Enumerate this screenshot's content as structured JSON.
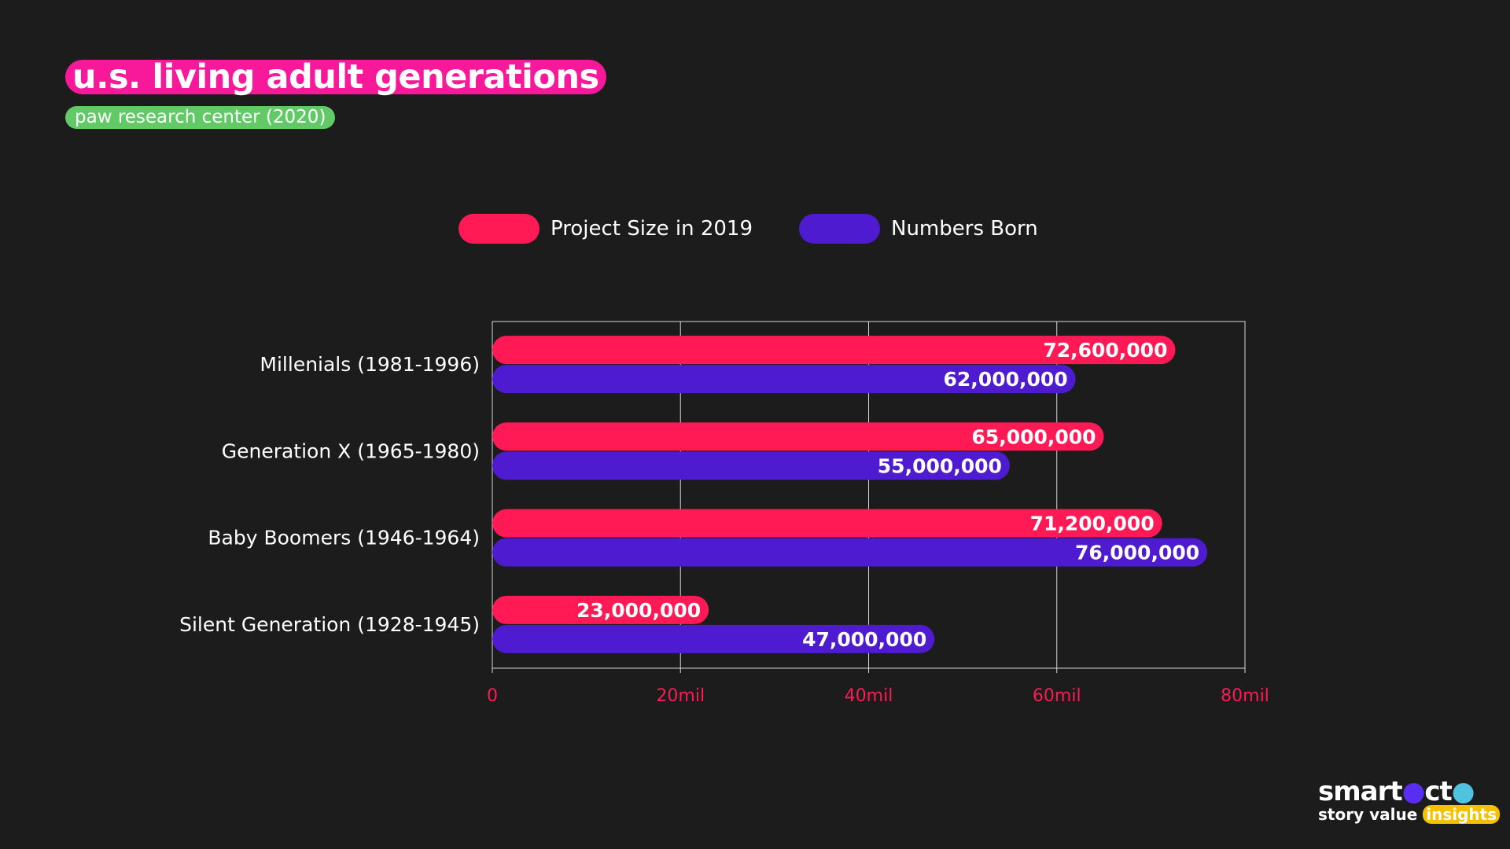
{
  "title": "u.s. living adult generations",
  "subtitle": "paw research center (2020)",
  "colors": {
    "background": "#1c1c1c",
    "title_bg": "#f8199a",
    "subtitle_bg": "#62c967",
    "series1": "#ff1a55",
    "series2": "#4f1bd0",
    "axis_text": "#ff1a55"
  },
  "logo": {
    "line1": "smartocto",
    "line2": "story value",
    "highlight": "insights"
  },
  "chart_data": {
    "type": "bar",
    "orientation": "horizontal",
    "categories": [
      "Millenials (1981-1996)",
      "Generation X (1965-1980)",
      "Baby Boomers (1946-1964)",
      "Silent Generation (1928-1945)"
    ],
    "series": [
      {
        "name": "Project Size in 2019",
        "values": [
          72600000,
          65000000,
          71200000,
          23000000
        ],
        "labels": [
          "72,600,000",
          "65,000,000",
          "71,200,000",
          "23,000,000"
        ]
      },
      {
        "name": "Numbers Born",
        "values": [
          62000000,
          55000000,
          76000000,
          47000000
        ],
        "labels": [
          "62,000,000",
          "55,000,000",
          "76,000,000",
          "47,000,000"
        ]
      }
    ],
    "xlim": [
      0,
      80000000
    ],
    "xticks": [
      0,
      20000000,
      40000000,
      60000000,
      80000000
    ],
    "xtick_labels": [
      "0",
      "20mil",
      "40mil",
      "60mil",
      "80mil"
    ],
    "grid": true,
    "legend": "top-center"
  }
}
